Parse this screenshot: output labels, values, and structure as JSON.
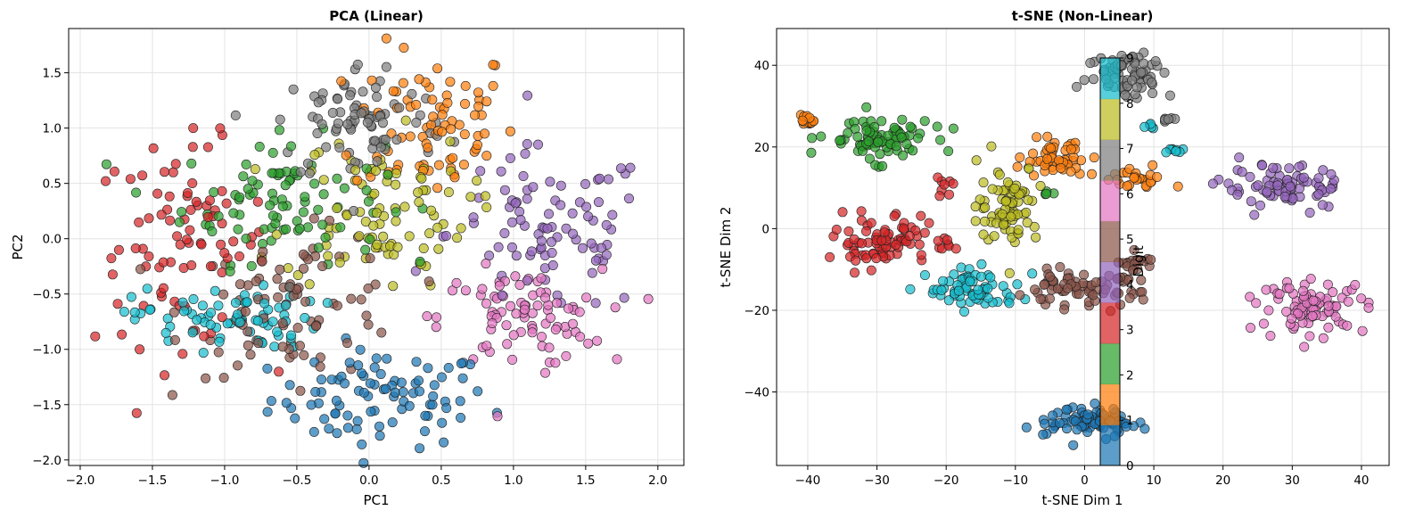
{
  "chart_data": [
    {
      "type": "scatter",
      "title": "PCA (Linear)",
      "xlabel": "PC1",
      "ylabel": "PC2",
      "xlim": [
        -2.08,
        2.18
      ],
      "ylim": [
        -2.05,
        1.9
      ],
      "xticks": [
        -2.0,
        -1.5,
        -1.0,
        -0.5,
        0.0,
        0.5,
        1.0,
        1.5,
        2.0
      ],
      "xtick_labels": [
        "−2.0",
        "−1.5",
        "−1.0",
        "−0.5",
        "0.0",
        "0.5",
        "1.0",
        "1.5",
        "2.0"
      ],
      "yticks": [
        -2.0,
        -1.5,
        -1.0,
        -0.5,
        0.0,
        0.5,
        1.0,
        1.5
      ],
      "ytick_labels": [
        "−2.0",
        "−1.5",
        "−1.0",
        "−0.5",
        "0.0",
        "0.5",
        "1.0",
        "1.5"
      ],
      "grid": true,
      "clusters": [
        {
          "digit": 0,
          "cx": 0.08,
          "cy": -1.45,
          "sx": 0.38,
          "sy": 0.22,
          "n": 90
        },
        {
          "digit": 1,
          "cx": 0.45,
          "cy": 1.05,
          "sx": 0.28,
          "sy": 0.35,
          "n": 80
        },
        {
          "digit": 2,
          "cx": -0.6,
          "cy": 0.35,
          "sx": 0.35,
          "sy": 0.28,
          "n": 90
        },
        {
          "digit": 3,
          "cx": -1.3,
          "cy": -0.05,
          "sx": 0.3,
          "sy": 0.45,
          "n": 85
        },
        {
          "digit": 4,
          "cx": 1.25,
          "cy": 0.05,
          "sx": 0.35,
          "sy": 0.38,
          "n": 90
        },
        {
          "digit": 5,
          "cx": -0.5,
          "cy": -0.6,
          "sx": 0.38,
          "sy": 0.32,
          "n": 85
        },
        {
          "digit": 6,
          "cx": 1.05,
          "cy": -0.72,
          "sx": 0.28,
          "sy": 0.22,
          "n": 85
        },
        {
          "digit": 7,
          "cx": -0.05,
          "cy": 1.05,
          "sx": 0.3,
          "sy": 0.28,
          "n": 85
        },
        {
          "digit": 8,
          "cx": 0.05,
          "cy": 0.25,
          "sx": 0.32,
          "sy": 0.35,
          "n": 90
        },
        {
          "digit": 9,
          "cx": -1.0,
          "cy": -0.72,
          "sx": 0.32,
          "sy": 0.14,
          "n": 75
        }
      ]
    },
    {
      "type": "scatter",
      "title": "t-SNE (Non-Linear)",
      "xlabel": "t-SNE Dim 1",
      "ylabel": "t-SNE Dim 2",
      "xlim": [
        -44.5,
        44
      ],
      "ylim": [
        -58,
        49
      ],
      "xticks": [
        -40,
        -30,
        -20,
        -10,
        0,
        10,
        20,
        30,
        40
      ],
      "xtick_labels": [
        "−40",
        "−30",
        "−20",
        "−10",
        "0",
        "10",
        "20",
        "30",
        "40"
      ],
      "yticks": [
        -40,
        -20,
        0,
        20,
        40
      ],
      "ytick_labels": [
        "−40",
        "−20",
        "0",
        "20",
        "40"
      ],
      "grid": true,
      "clusters": [
        {
          "digit": 0,
          "cx": 1,
          "cy": -47,
          "sx": 3.2,
          "sy": 1.6,
          "n": 90
        },
        {
          "digit": 1,
          "cx": -4,
          "cy": 17,
          "sx": 2.4,
          "sy": 2.0,
          "n": 50
        },
        {
          "digit": 1,
          "cx": 7,
          "cy": 12,
          "sx": 2.5,
          "sy": 1.5,
          "n": 25
        },
        {
          "digit": 1,
          "cx": -40,
          "cy": 26.5,
          "sx": 0.8,
          "sy": 0.8,
          "n": 15
        },
        {
          "digit": 2,
          "cx": -30,
          "cy": 22,
          "sx": 3.8,
          "sy": 2.6,
          "n": 85
        },
        {
          "digit": 2,
          "cx": -6,
          "cy": 8.5,
          "sx": 0.6,
          "sy": 0.4,
          "n": 4
        },
        {
          "digit": 3,
          "cx": -29,
          "cy": -3,
          "sx": 3.5,
          "sy": 3.2,
          "n": 80
        },
        {
          "digit": 3,
          "cx": -20,
          "cy": 11,
          "sx": 0.8,
          "sy": 1.0,
          "n": 8
        },
        {
          "digit": 3,
          "cx": -20,
          "cy": -4.5,
          "sx": 0.8,
          "sy": 0.8,
          "n": 6
        },
        {
          "digit": 4,
          "cx": 29,
          "cy": 10,
          "sx": 4.5,
          "sy": 2.6,
          "n": 80
        },
        {
          "digit": 5,
          "cx": -1,
          "cy": -15,
          "sx": 4.5,
          "sy": 2.0,
          "n": 75
        },
        {
          "digit": 5,
          "cx": 7,
          "cy": -9,
          "sx": 1.5,
          "sy": 1.8,
          "n": 20
        },
        {
          "digit": 6,
          "cx": 33,
          "cy": -19,
          "sx": 3.8,
          "sy": 3.0,
          "n": 85
        },
        {
          "digit": 7,
          "cx": 6.5,
          "cy": 38,
          "sx": 3.0,
          "sy": 3.0,
          "n": 75
        },
        {
          "digit": 7,
          "cx": 12,
          "cy": 27,
          "sx": 0.7,
          "sy": 0.6,
          "n": 6
        },
        {
          "digit": 8,
          "cx": -11,
          "cy": 6,
          "sx": 2.2,
          "sy": 5.0,
          "n": 80
        },
        {
          "digit": 9,
          "cx": -16,
          "cy": -15,
          "sx": 3.4,
          "sy": 2.3,
          "n": 70
        },
        {
          "digit": 9,
          "cx": 13,
          "cy": 19,
          "sx": 0.8,
          "sy": 0.8,
          "n": 8
        },
        {
          "digit": 9,
          "cx": 9.5,
          "cy": 25,
          "sx": 0.8,
          "sy": 0.5,
          "n": 5
        }
      ],
      "colorbar": {
        "label": "Digit",
        "ticks": [
          0,
          1,
          2,
          3,
          4,
          5,
          6,
          7,
          8,
          9
        ],
        "tick_labels": [
          "0",
          "1",
          "2",
          "3",
          "4",
          "5",
          "6",
          "7",
          "8",
          "9"
        ],
        "range": [
          0,
          9
        ]
      }
    }
  ],
  "palette": [
    "#1f77b4",
    "#ff7f0e",
    "#2ca02c",
    "#d62728",
    "#9467bd",
    "#8c564b",
    "#e377c2",
    "#7f7f7f",
    "#bcbd22",
    "#17becf"
  ]
}
